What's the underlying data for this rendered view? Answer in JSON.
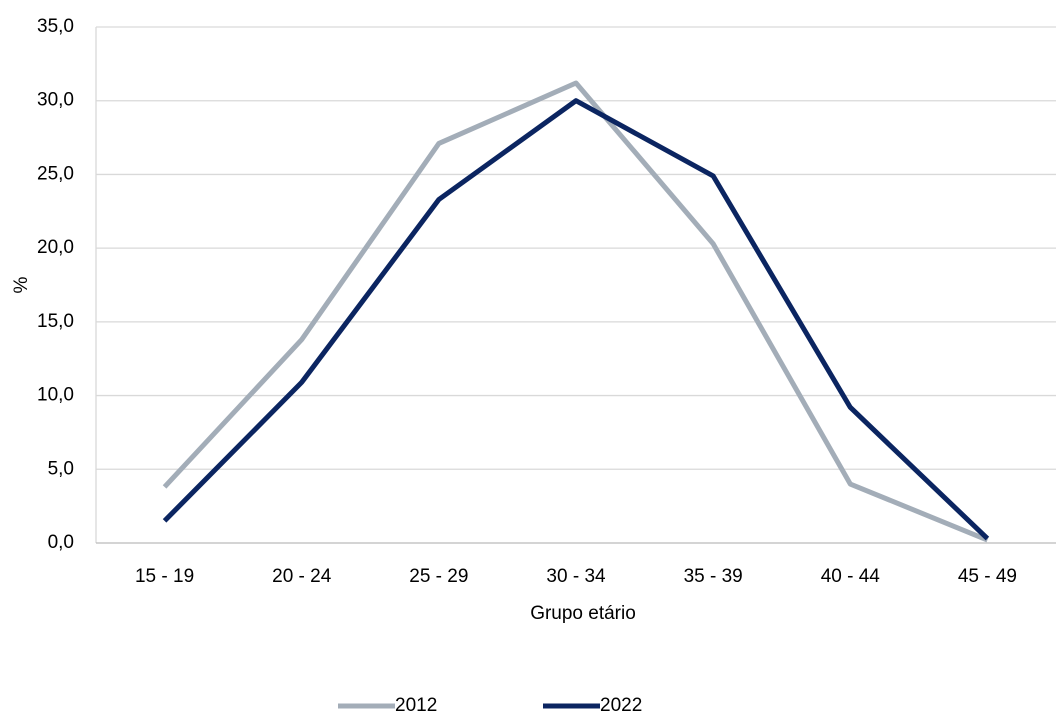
{
  "chart_data": {
    "type": "line",
    "x_label": "Grupo etário",
    "y_label": "%",
    "categories": [
      "15 - 19",
      "20 - 24",
      "25 - 29",
      "30 - 34",
      "35 - 39",
      "40 - 44",
      "45 - 49"
    ],
    "series": [
      {
        "name": "2012",
        "color": "#a3adb8",
        "values": [
          3.8,
          13.8,
          27.1,
          31.2,
          20.3,
          4.0,
          0.2
        ]
      },
      {
        "name": "2022",
        "color": "#0b2561",
        "values": [
          1.5,
          10.9,
          23.3,
          30.0,
          24.9,
          9.2,
          0.3
        ]
      }
    ],
    "ylim": [
      0,
      35
    ],
    "yticks": [
      {
        "value": 0,
        "label": "0,0"
      },
      {
        "value": 5,
        "label": "5,0"
      },
      {
        "value": 10,
        "label": "10,0"
      },
      {
        "value": 15,
        "label": "15,0"
      },
      {
        "value": 20,
        "label": "20,0"
      },
      {
        "value": 25,
        "label": "25,0"
      },
      {
        "value": 30,
        "label": "30,0"
      },
      {
        "value": 35,
        "label": "35,0"
      }
    ],
    "grid": true,
    "legend": "bottom"
  }
}
